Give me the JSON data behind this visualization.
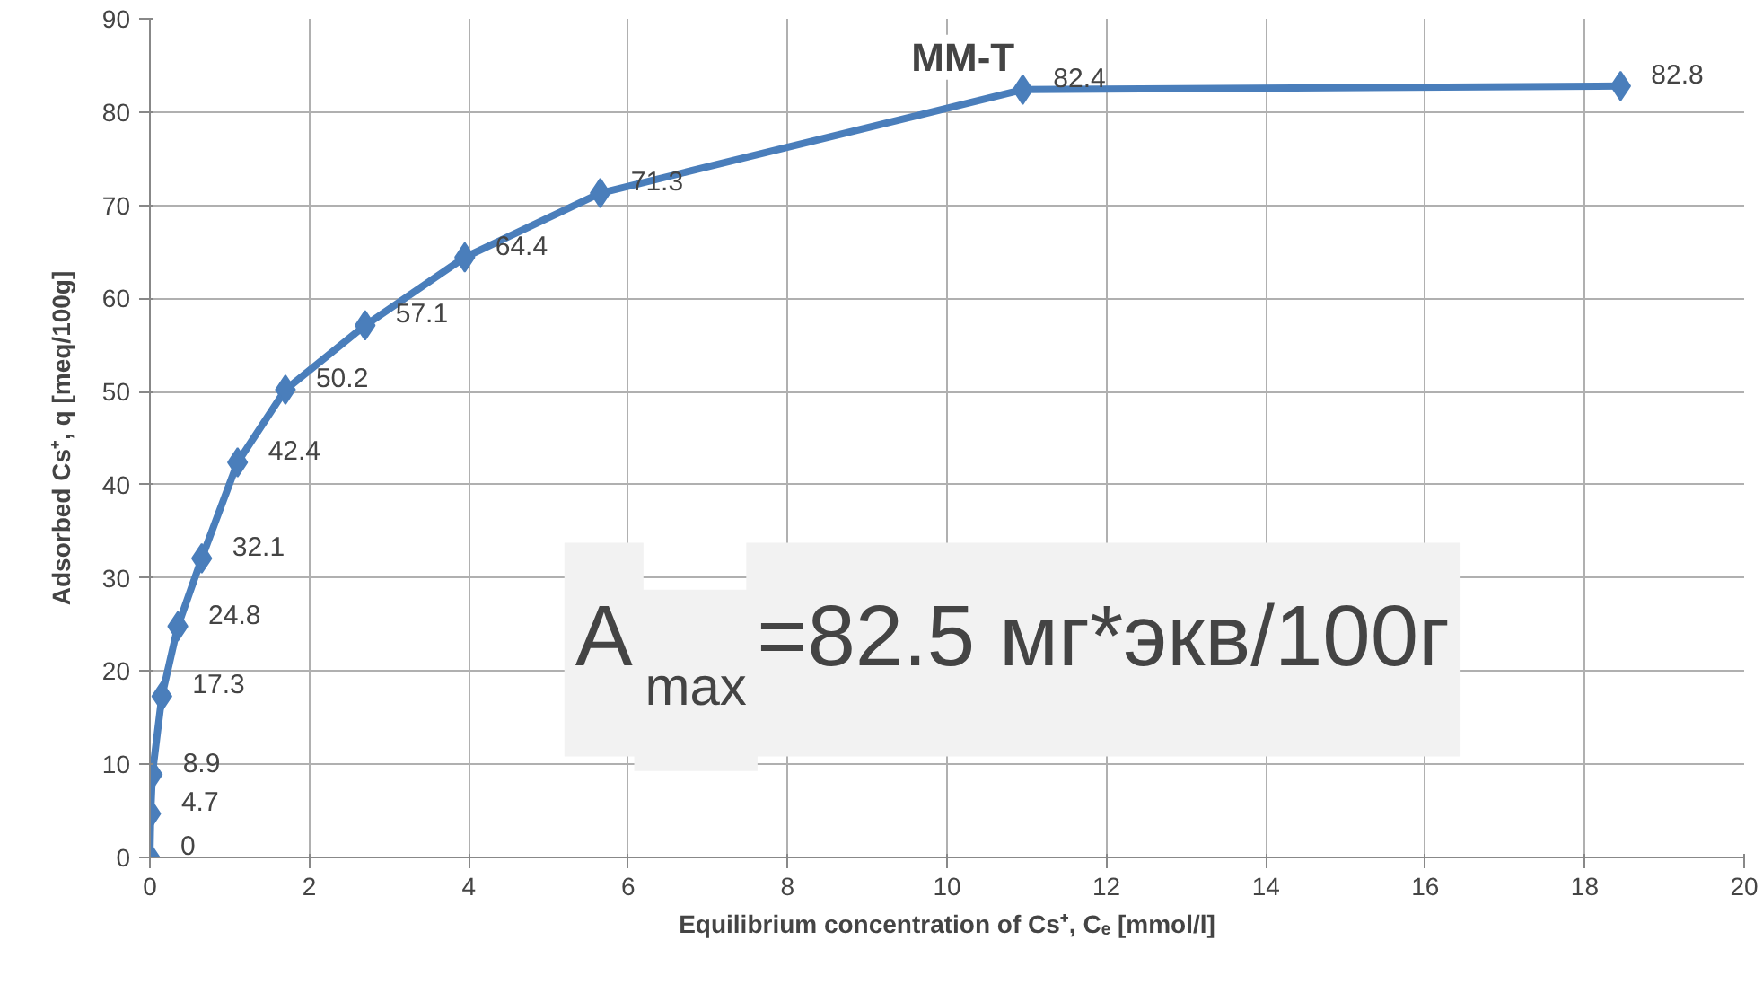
{
  "chart_data": {
    "type": "line",
    "title": "MM-T",
    "xlabel": "Equilibrium concentration of Cs⁺, Cₑ [mmol/l]",
    "ylabel": "Adsorbed Cs⁺, q [meq/100g]",
    "x": [
      0,
      0.01,
      0.03,
      0.15,
      0.35,
      0.65,
      1.1,
      1.7,
      2.7,
      3.95,
      5.65,
      10.95,
      18.45
    ],
    "series": [
      {
        "color": "#4a7ebb",
        "values": [
          0,
          4.7,
          8.9,
          17.3,
          24.8,
          32.1,
          42.4,
          50.2,
          57.1,
          64.4,
          71.3,
          82.4,
          82.8
        ]
      }
    ],
    "xlim": [
      0,
      20
    ],
    "xticks": [
      0,
      2,
      4,
      6,
      8,
      10,
      12,
      14,
      16,
      18,
      20
    ],
    "ylim": [
      0,
      90
    ],
    "yticks": [
      0,
      10,
      20,
      30,
      40,
      50,
      60,
      70,
      80,
      90
    ],
    "grid": true,
    "marker": "diamond",
    "line_style": "solid",
    "data_labels": true,
    "annotations": [
      "A$_{max}$=82.5 мг*экв/100г"
    ]
  }
}
